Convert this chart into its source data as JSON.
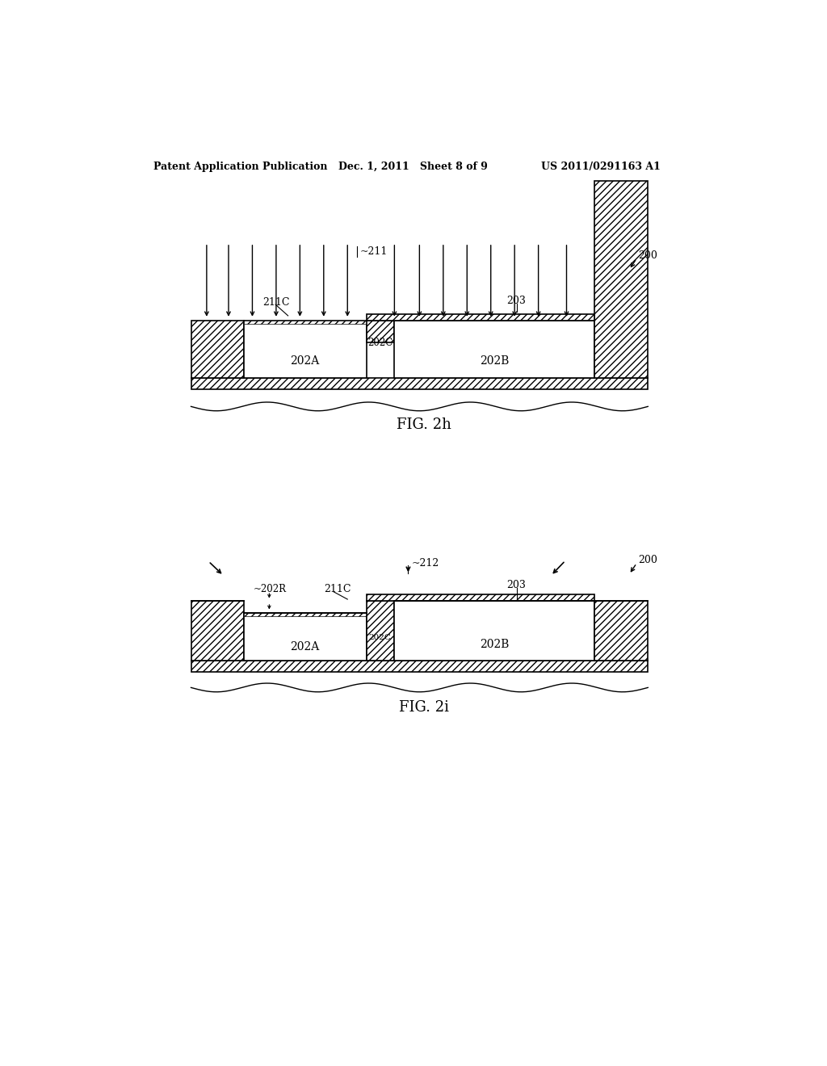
{
  "bg_color": "#ffffff",
  "header_left": "Patent Application Publication",
  "header_mid": "Dec. 1, 2011   Sheet 8 of 9",
  "header_right": "US 2011/0291163 A1",
  "fig2h_label": "FIG. 2h",
  "fig2i_label": "FIG. 2i",
  "label_200_h": "200",
  "label_200_i": "200",
  "label_211": "~211",
  "label_211C_h": "211C",
  "label_203_h": "203",
  "label_202A_h": "202A",
  "label_202B_h": "202B",
  "label_202C_h": "202C",
  "label_212": "~212",
  "label_202R": "~202R",
  "label_211C_i": "211C",
  "label_203_i": "203",
  "label_202A_i": "202A",
  "label_202B_i": "202B",
  "label_202C_i": "202C"
}
